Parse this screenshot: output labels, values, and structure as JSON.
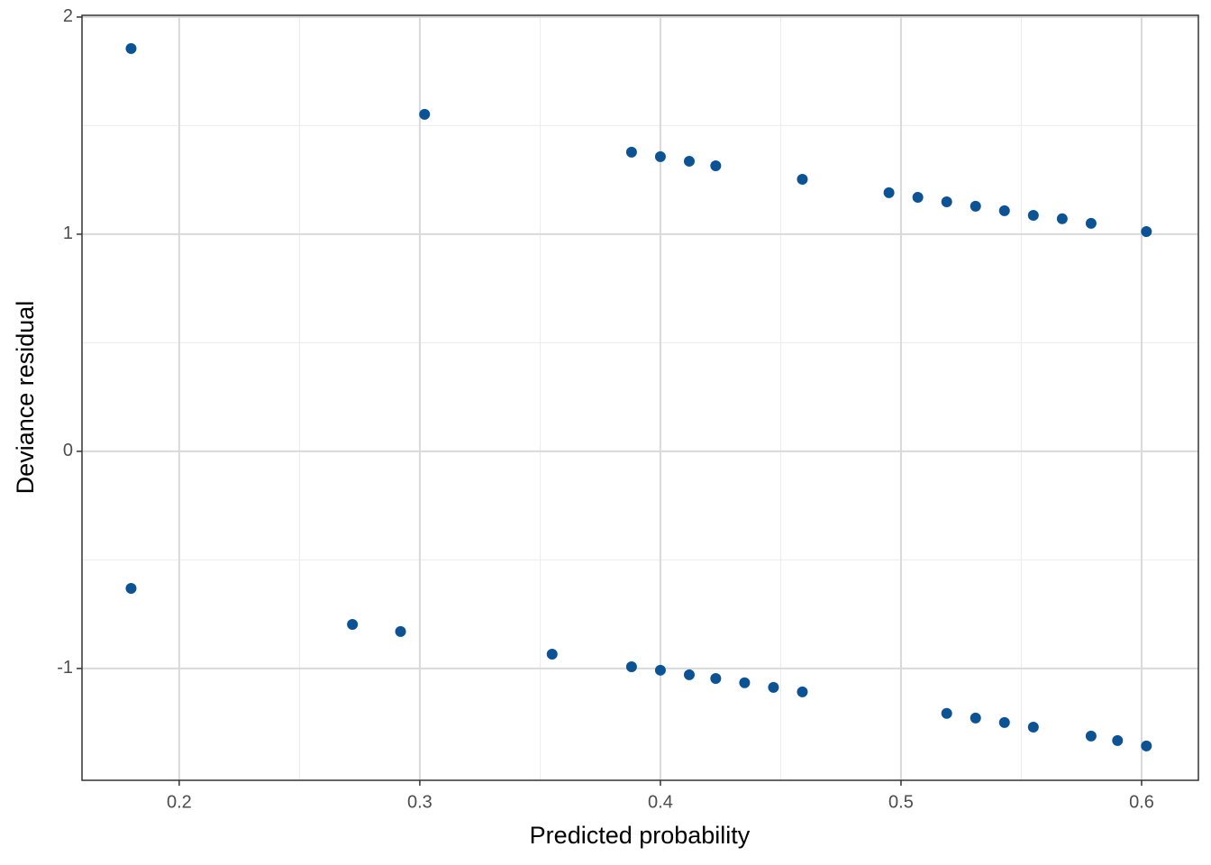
{
  "chart_data": {
    "type": "scatter",
    "xlabel": "Predicted probability",
    "ylabel": "Deviance residual",
    "color": "#0b5394",
    "x": [
      0.18,
      0.302,
      0.388,
      0.4,
      0.412,
      0.423,
      0.459,
      0.495,
      0.507,
      0.519,
      0.531,
      0.543,
      0.555,
      0.567,
      0.579,
      0.602,
      0.18,
      0.272,
      0.292,
      0.355,
      0.388,
      0.4,
      0.412,
      0.423,
      0.435,
      0.447,
      0.459,
      0.519,
      0.531,
      0.543,
      0.555,
      0.579,
      0.59,
      0.602
    ],
    "values": [
      1.855,
      1.552,
      1.378,
      1.357,
      1.336,
      1.315,
      1.253,
      1.191,
      1.17,
      1.149,
      1.129,
      1.108,
      1.087,
      1.071,
      1.05,
      1.012,
      -0.631,
      -0.797,
      -0.83,
      -0.934,
      -0.992,
      -1.008,
      -1.029,
      -1.046,
      -1.066,
      -1.087,
      -1.108,
      -1.207,
      -1.228,
      -1.249,
      -1.27,
      -1.311,
      -1.332,
      -1.357
    ],
    "xlim": [
      0.1596,
      0.6236
    ],
    "ylim": [
      -1.515,
      2.008
    ],
    "xticks": [
      0.2,
      0.3,
      0.4,
      0.5,
      0.6
    ],
    "yticks": [
      -1,
      0,
      1,
      2
    ],
    "minor_xticks": [
      0.25,
      0.35,
      0.45,
      0.55
    ],
    "minor_yticks": [
      -0.5,
      0.5,
      1.5
    ],
    "grid": true
  }
}
